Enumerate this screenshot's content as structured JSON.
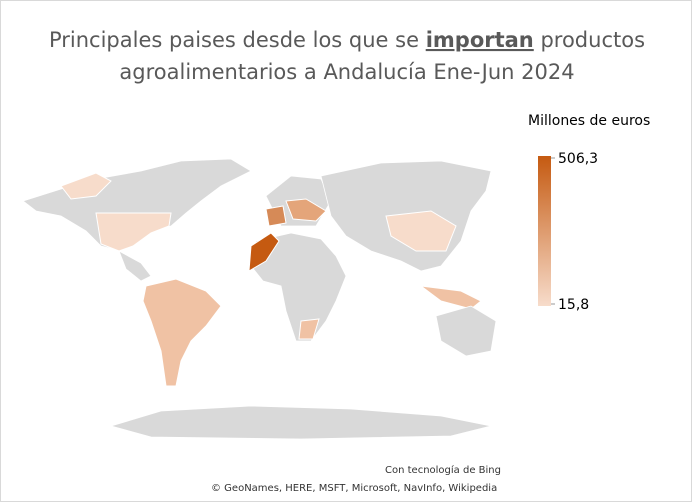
{
  "title": {
    "line1_start": "Principales paises desde los que se",
    "line1_emphasis": "importan",
    "line1_end": "productos",
    "line2": "agroalimentarios a Andalucía Ene-Jun 2024"
  },
  "legend": {
    "title": "Millones de euros",
    "max": {
      "value": 506.3,
      "label": "506,3"
    },
    "min": {
      "value": 15.8,
      "label": "15,8"
    },
    "color_low": "#f7dccb",
    "color_high": "#c55a11"
  },
  "attribution": {
    "line1": "Con tecnología de Bing",
    "line2": "© GeoNames, HERE, MSFT, Microsoft, NavInfo, Wikipedia"
  }
}
